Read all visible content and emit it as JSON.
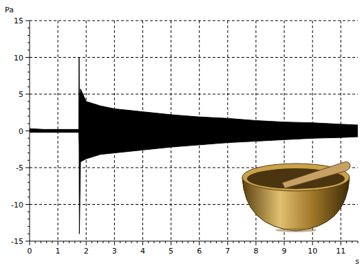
{
  "chart_data": {
    "type": "area",
    "y_label": "Pa",
    "x_label": "s",
    "x": [
      0,
      0.5,
      1,
      1.5,
      1.74,
      1.75,
      1.76,
      1.8,
      2,
      2.5,
      3,
      3.5,
      4,
      5,
      6,
      7,
      8,
      9,
      10,
      11,
      11.6
    ],
    "series": [
      {
        "color": "#000000",
        "values": [
          0.3,
          0.2,
          0.2,
          0.2,
          0.2,
          10,
          3,
          5.7,
          4,
          3.4,
          3,
          2.8,
          2.6,
          2.2,
          1.9,
          1.7,
          1.4,
          1.2,
          1.1,
          0.9,
          0.8
        ]
      },
      {
        "color": "#000000",
        "values": [
          -0.2,
          -0.2,
          -0.2,
          -0.2,
          -0.2,
          -2,
          -14,
          -4.2,
          -3.8,
          -3.2,
          -3,
          -2.8,
          -2.6,
          -2.2,
          -1.9,
          -1.6,
          -1.4,
          -1.2,
          -1,
          -0.9,
          -0.8
        ]
      }
    ],
    "xlim": [
      0,
      11.6
    ],
    "ylim": [
      -15,
      15
    ],
    "xticks": [
      0,
      1,
      2,
      3,
      4,
      5,
      6,
      7,
      8,
      9,
      10,
      11
    ],
    "yticks": [
      -15,
      -10,
      -5,
      0,
      5,
      10,
      15
    ],
    "grid": true
  }
}
